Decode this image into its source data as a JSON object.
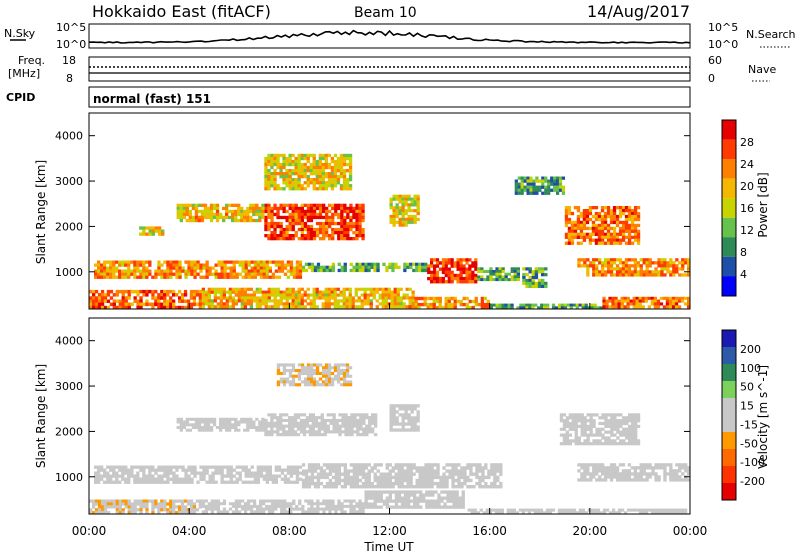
{
  "header": {
    "station": "Hokkaido East (fitACF)",
    "beam": "Beam 10",
    "date": "14/Aug/2017"
  },
  "side_labels": {
    "nsky": "N.Sky",
    "nsearch": "N.Search",
    "freq_line1": "Freq.",
    "freq_line2": "[MHz]",
    "nave": "Nave",
    "cpid": "CPID"
  },
  "mini_panels": {
    "noise_left_ticks": [
      "10^5",
      "10^0"
    ],
    "noise_right_ticks": [
      "10^5",
      "10^0"
    ],
    "freq_ticks": [
      "18",
      "8"
    ],
    "nave_ticks": [
      "60",
      "0"
    ],
    "cpid_text": "normal (fast) 151"
  },
  "colors": {
    "power_scale": [
      "#0000ff",
      "#1e4fa8",
      "#2e8b57",
      "#66c24a",
      "#c8d400",
      "#f5b800",
      "#ff7f00",
      "#ff3b00",
      "#e60000"
    ],
    "velocity_scale": [
      "#1a1ab3",
      "#2c5aa8",
      "#2e8b57",
      "#7cd15a",
      "#c8c8c8",
      "#c8c8c8",
      "#ff9900",
      "#ff6a00",
      "#ff3300",
      "#e60000"
    ]
  },
  "chart_data": [
    {
      "type": "heatmap",
      "panel": "power",
      "xlabel": "",
      "ylabel": "Slant Range [km]",
      "xlim": [
        "00:00",
        "24:00"
      ],
      "ylim": [
        180,
        4500
      ],
      "yticks": [
        "1000",
        "2000",
        "3000",
        "4000"
      ],
      "colorbar": {
        "label": "Power [dB]",
        "ticks": [
          "4",
          "8",
          "12",
          "16",
          "20",
          "24",
          "28"
        ],
        "range": [
          0,
          32
        ]
      },
      "regions": [
        {
          "t0": 0.2,
          "t1": 8.5,
          "r0": 850,
          "r1": 1250,
          "v": 22
        },
        {
          "t0": 8.5,
          "t1": 13.5,
          "r0": 1000,
          "r1": 1200,
          "v": 12
        },
        {
          "t0": 13.5,
          "t1": 15.5,
          "r0": 750,
          "r1": 1300,
          "v": 27
        },
        {
          "t0": 15.5,
          "t1": 17.2,
          "r0": 800,
          "r1": 1100,
          "v": 11
        },
        {
          "t0": 17.3,
          "t1": 18.3,
          "r0": 650,
          "r1": 1100,
          "v": 11
        },
        {
          "t0": 19.5,
          "t1": 24.0,
          "r0": 900,
          "r1": 1300,
          "v": 22
        },
        {
          "t0": 0.0,
          "t1": 4.5,
          "r0": 180,
          "r1": 600,
          "v": 25
        },
        {
          "t0": 4.5,
          "t1": 13.0,
          "r0": 200,
          "r1": 650,
          "v": 20
        },
        {
          "t0": 13.0,
          "t1": 16.0,
          "r0": 180,
          "r1": 450,
          "v": 22
        },
        {
          "t0": 16.0,
          "t1": 20.5,
          "r0": 180,
          "r1": 300,
          "v": 11
        },
        {
          "t0": 20.5,
          "t1": 24.0,
          "r0": 200,
          "r1": 450,
          "v": 24
        },
        {
          "t0": 7.0,
          "t1": 11.0,
          "r0": 1700,
          "r1": 2500,
          "v": 27
        },
        {
          "t0": 3.5,
          "t1": 7.0,
          "r0": 2100,
          "r1": 2500,
          "v": 19
        },
        {
          "t0": 12.0,
          "t1": 13.2,
          "r0": 2000,
          "r1": 2700,
          "v": 18
        },
        {
          "t0": 7.0,
          "t1": 10.5,
          "r0": 2800,
          "r1": 3600,
          "v": 18
        },
        {
          "t0": 19.0,
          "t1": 22.0,
          "r0": 1600,
          "r1": 2450,
          "v": 24
        },
        {
          "t0": 2.0,
          "t1": 3.0,
          "r0": 1800,
          "r1": 2000,
          "v": 18
        },
        {
          "t0": 17.0,
          "t1": 19.0,
          "r0": 2700,
          "r1": 3100,
          "v": 10
        }
      ]
    },
    {
      "type": "heatmap",
      "panel": "velocity",
      "xlabel": "Time UT",
      "ylabel": "Slant Range [km]",
      "xlim": [
        "00:00",
        "24:00"
      ],
      "ylim": [
        180,
        4500
      ],
      "xticks": [
        "00:00",
        "04:00",
        "08:00",
        "12:00",
        "16:00",
        "20:00",
        "00:00"
      ],
      "yticks": [
        "1000",
        "2000",
        "3000",
        "4000"
      ],
      "colorbar": {
        "label": "Velocity [m s^-1]",
        "ticks": [
          "200",
          "100",
          "50",
          "15",
          "-15",
          "-50",
          "-100",
          "-200"
        ],
        "range": [
          -250,
          250
        ]
      },
      "regions": [
        {
          "t0": 0.2,
          "t1": 8.5,
          "r0": 850,
          "r1": 1250,
          "v": 0
        },
        {
          "t0": 8.5,
          "t1": 16.5,
          "r0": 750,
          "r1": 1300,
          "v": 0
        },
        {
          "t0": 19.5,
          "t1": 24.0,
          "r0": 900,
          "r1": 1300,
          "v": 0
        },
        {
          "t0": 0.0,
          "t1": 4.5,
          "r0": 180,
          "r1": 500,
          "v": -40
        },
        {
          "t0": 4.5,
          "t1": 11.0,
          "r0": 200,
          "r1": 500,
          "v": 0
        },
        {
          "t0": 11.0,
          "t1": 15.0,
          "r0": 300,
          "r1": 700,
          "v": 30
        },
        {
          "t0": 15.0,
          "t1": 24.0,
          "r0": 180,
          "r1": 300,
          "v": 30
        },
        {
          "t0": 7.0,
          "t1": 11.5,
          "r0": 1900,
          "r1": 2400,
          "v": 0
        },
        {
          "t0": 3.5,
          "t1": 7.0,
          "r0": 2000,
          "r1": 2300,
          "v": 0
        },
        {
          "t0": 12.0,
          "t1": 13.2,
          "r0": 2000,
          "r1": 2600,
          "v": 0
        },
        {
          "t0": 7.5,
          "t1": 10.5,
          "r0": 3000,
          "r1": 3500,
          "v": -40
        },
        {
          "t0": 18.8,
          "t1": 22.0,
          "r0": 1700,
          "r1": 2400,
          "v": 25
        }
      ]
    }
  ]
}
